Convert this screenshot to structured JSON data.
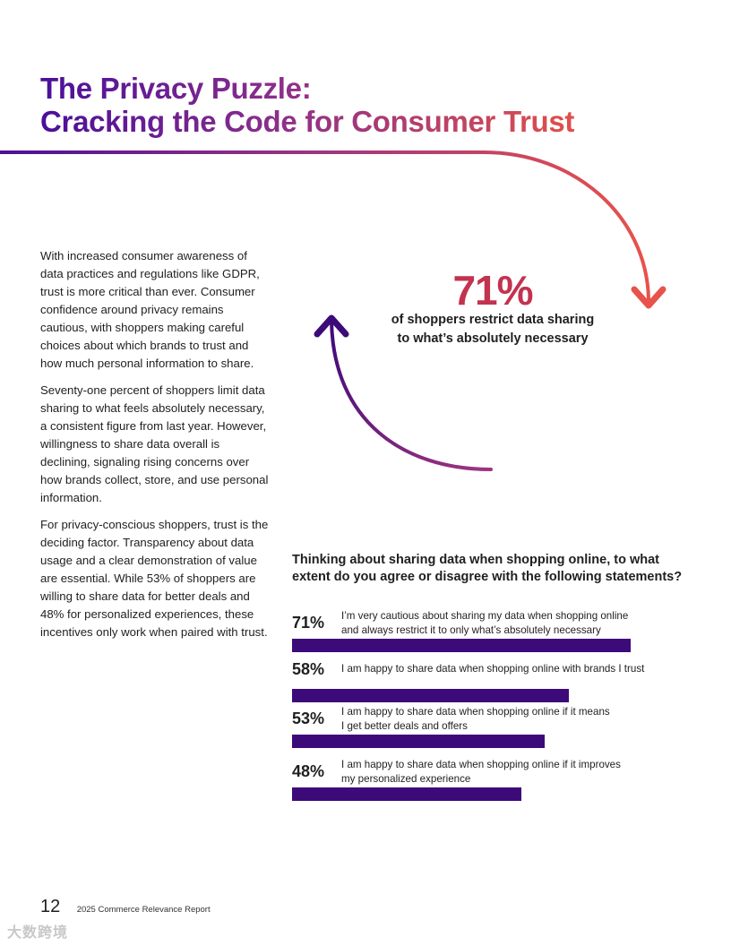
{
  "title": {
    "line1": "The Privacy Puzzle:",
    "line2": "Cracking the Code for Consumer Trust"
  },
  "body": {
    "paragraphs": [
      "With increased consumer awareness of data practices and regulations like GDPR, trust is more critical than ever. Consumer confidence around privacy remains cautious, with shoppers making careful choices about which brands to trust and how much personal information to share.",
      "Seventy-one percent of shoppers limit data sharing to what feels absolutely necessary, a consistent figure from last year. However, willingness to share data overall is declining, signaling rising concerns over how brands collect, store, and use personal information.",
      "For privacy-conscious shoppers, trust is the deciding factor. Transparency about data usage and a clear demonstration of value are essential. While 53% of shoppers are willing to share data for better deals and 48% for personalized experiences, these incentives only work when paired with trust."
    ]
  },
  "callout": {
    "value": "71%",
    "caption_line1": "of shoppers restrict data sharing",
    "caption_line2": "to what’s absolutely necessary"
  },
  "survey": {
    "question_line1": "Thinking about sharing data when shopping online, to what",
    "question_line2": "extent do you agree or disagree with the following statements?"
  },
  "chart_data": {
    "type": "bar",
    "orientation": "horizontal",
    "categories": [
      "I’m very cautious about sharing my data when shopping online and always restrict it to only what’s absolutely necessary",
      "I am happy to share data when shopping online with brands I trust",
      "I am happy to share data when shopping online if it means I get better deals and offers",
      "I am happy to share data when shopping online if it improves my personalized experience"
    ],
    "values": [
      71,
      58,
      53,
      48
    ],
    "labels": [
      "71%",
      "58%",
      "53%",
      "48%"
    ],
    "label_lines": [
      [
        "I’m very cautious about sharing my data when shopping online",
        "and always restrict it to only what’s absolutely necessary"
      ],
      [
        "I am happy to share data when shopping online with brands I trust"
      ],
      [
        "I am happy to share data when shopping online if it means",
        "I get better deals and offers"
      ],
      [
        "I am happy to share data when shopping online if it improves",
        "my personalized experience"
      ]
    ],
    "xlim": [
      0,
      100
    ],
    "bar_color": "#3d0a7a"
  },
  "footer": {
    "page_number": "12",
    "report_name": "2025 Commerce Relevance Report"
  },
  "colors": {
    "gradient_start": "#4a0f9a",
    "gradient_mid": "#8c2f8a",
    "gradient_end": "#e0504a",
    "callout": "#c2334f"
  },
  "watermark": "大数跨境"
}
